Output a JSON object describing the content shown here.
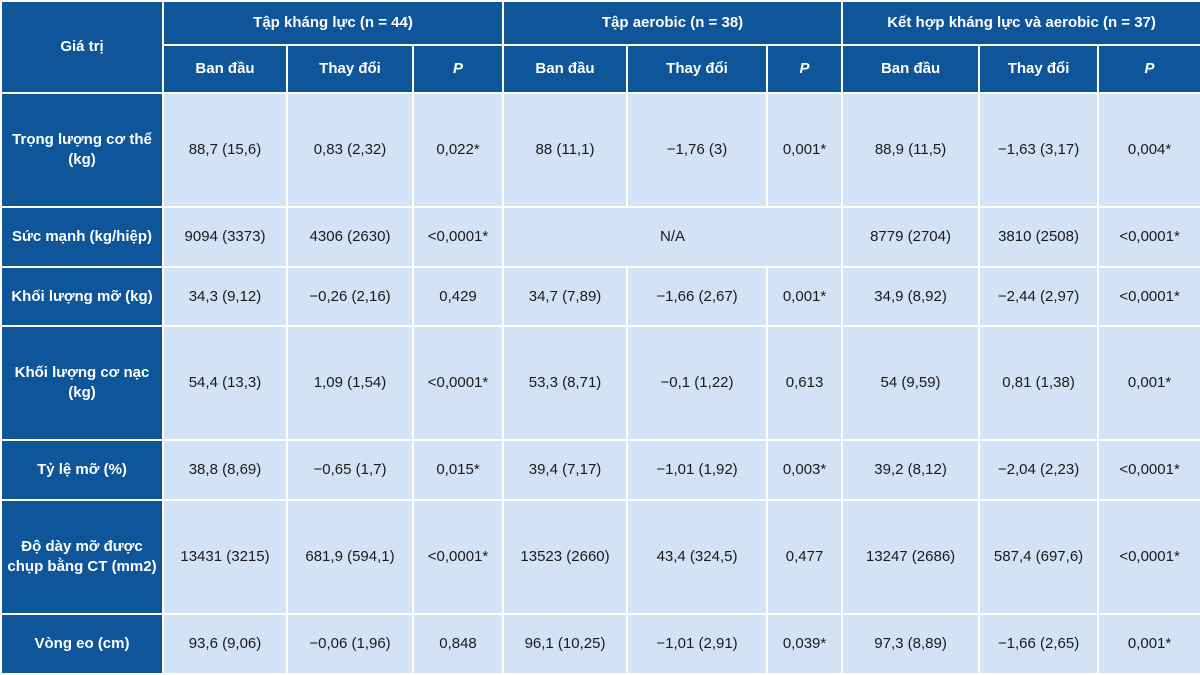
{
  "corner_label": "Giá trị",
  "groups": [
    {
      "title": "Tập kháng lực (n = 44)"
    },
    {
      "title": "Tập aerobic (n = 38)"
    },
    {
      "title": "Kết hợp kháng lực và aerobic (n = 37)"
    }
  ],
  "subheaders": {
    "baseline": "Ban đầu",
    "change": "Thay đổi",
    "p": "P"
  },
  "rows": [
    {
      "label": "Trọng lượng cơ thể (kg)",
      "cells": [
        "88,7 (15,6)",
        "0,83 (2,32)",
        "0,022*",
        "88 (11,1)",
        "−1,76 (3)",
        "0,001*",
        "88,9 (11,5)",
        "−1,63 (3,17)",
        "0,004*"
      ]
    },
    {
      "label": "Sức mạnh (kg/hiệp)",
      "cells": [
        "9094 (3373)",
        "4306 (2630)",
        "<0,0001*",
        "N/A",
        "8779 (2704)",
        "3810 (2508)",
        "<0,0001*"
      ]
    },
    {
      "label": "Khối lượng mỡ (kg)",
      "cells": [
        "34,3 (9,12)",
        "−0,26 (2,16)",
        "0,429",
        "34,7 (7,89)",
        "−1,66 (2,67)",
        "0,001*",
        "34,9 (8,92)",
        "−2,44 (2,97)",
        "<0,0001*"
      ]
    },
    {
      "label": "Khối lượng cơ nạc (kg)",
      "cells": [
        "54,4 (13,3)",
        "1,09 (1,54)",
        "<0,0001*",
        "53,3 (8,71)",
        "−0,1 (1,22)",
        "0,613",
        "54 (9,59)",
        "0,81 (1,38)",
        "0,001*"
      ]
    },
    {
      "label": "Tỷ lệ mỡ (%)",
      "cells": [
        "38,8 (8,69)",
        "−0,65 (1,7)",
        "0,015*",
        "39,4 (7,17)",
        "−1,01 (1,92)",
        "0,003*",
        "39,2 (8,12)",
        "−2,04 (2,23)",
        "<0,0001*"
      ]
    },
    {
      "label": "Độ dày mỡ được chụp bằng CT (mm2)",
      "cells": [
        "13431 (3215)",
        "681,9 (594,1)",
        "<0,0001*",
        "13523 (2660)",
        "43,4 (324,5)",
        "0,477",
        "13247 (2686)",
        "587,4 (697,6)",
        "<0,0001*"
      ]
    },
    {
      "label": "Vòng eo (cm)",
      "cells": [
        "93,6 (9,06)",
        "−0,06 (1,96)",
        "0,848",
        "96,1 (10,25)",
        "−1,01 (2,91)",
        "0,039*",
        "97,3 (8,89)",
        "−1,66 (2,65)",
        "0,001*"
      ]
    }
  ]
}
